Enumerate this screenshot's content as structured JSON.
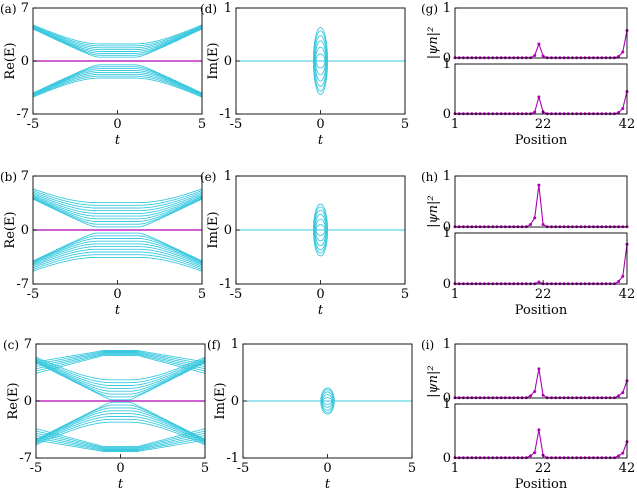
{
  "colors": {
    "cyan": "#3ac9df",
    "magenta": "#b000b5",
    "axis": "#000000"
  },
  "chart_data": [
    {
      "type": "line",
      "panel": "a",
      "label": "(a)",
      "xlabel": "t",
      "ylabel": "Re(E)",
      "xlim": [
        -5,
        5
      ],
      "ylim": [
        -7,
        7
      ],
      "xticks": [
        "-5",
        "0",
        "5"
      ],
      "yticks": [
        "7",
        "0",
        "-7"
      ],
      "band_model": {
        "nbands": 8,
        "gap_min": 0.5,
        "gap_step": 0.25,
        "slope": 1.05,
        "x_knee": 1.0
      },
      "series": [
        {
          "values": [
            [
              -5,
              0
            ],
            [
              5,
              0
            ]
          ],
          "color": "magenta"
        }
      ]
    },
    {
      "type": "line",
      "panel": "d",
      "label": "(d)",
      "xlabel": "t",
      "ylabel": "Im(E)",
      "xlim": [
        -5,
        5
      ],
      "ylim": [
        -1,
        1
      ],
      "xticks": [
        "-5",
        "0",
        "5"
      ],
      "yticks": [
        "1",
        "0",
        "-1"
      ],
      "ellipse_model": {
        "half_width_t": 0.42,
        "semi_axes_im": [
          0.13,
          0.26,
          0.38,
          0.48,
          0.57,
          0.63
        ]
      }
    },
    {
      "type": "line",
      "panel": "g",
      "label": "(g)",
      "xlabel": "Position",
      "ylabel": "|ψn|²",
      "xlim": [
        1,
        42
      ],
      "ylim": [
        0,
        1
      ],
      "xticks": [
        "1",
        "22",
        "42"
      ],
      "yticks": [
        "1",
        "0"
      ],
      "subplots": [
        {
          "peaks": [
            [
              20,
              0.05
            ],
            [
              21,
              0.28
            ],
            [
              22,
              0.04
            ],
            [
              40,
              0.03
            ],
            [
              41,
              0.12
            ],
            [
              42,
              0.55
            ]
          ]
        },
        {
          "peaks": [
            [
              20,
              0.04
            ],
            [
              21,
              0.34
            ],
            [
              22,
              0.04
            ],
            [
              40,
              0.03
            ],
            [
              41,
              0.11
            ],
            [
              42,
              0.45
            ]
          ]
        }
      ]
    },
    {
      "type": "line",
      "panel": "b",
      "label": "(b)",
      "xlabel": "t",
      "ylabel": "Re(E)",
      "xlim": [
        -5,
        5
      ],
      "ylim": [
        -7,
        7
      ],
      "xticks": [
        "-5",
        "0",
        "5"
      ],
      "yticks": [
        "7",
        "0",
        "-7"
      ],
      "band_model": {
        "nbands": 10,
        "gap_min": 0.4,
        "gap_step": 0.35,
        "slope": 1.05,
        "x_knee": 1.2
      },
      "series": [
        {
          "values": [
            [
              -5,
              0
            ],
            [
              5,
              0
            ]
          ],
          "color": "magenta"
        }
      ]
    },
    {
      "type": "line",
      "panel": "e",
      "label": "(e)",
      "xlabel": "t",
      "ylabel": "Im(E)",
      "xlim": [
        -5,
        5
      ],
      "ylim": [
        -1,
        1
      ],
      "xticks": [
        "-5",
        "0",
        "5"
      ],
      "yticks": [
        "1",
        "0",
        "-1"
      ],
      "ellipse_model": {
        "half_width_t": 0.42,
        "semi_axes_im": [
          0.1,
          0.2,
          0.29,
          0.37,
          0.43,
          0.48
        ]
      }
    },
    {
      "type": "line",
      "panel": "h",
      "label": "(h)",
      "xlabel": "Position",
      "ylabel": "|ψn|²",
      "xlim": [
        1,
        42
      ],
      "ylim": [
        0,
        1
      ],
      "xticks": [
        "1",
        "22",
        "42"
      ],
      "yticks": [
        "1",
        "0"
      ],
      "subplots": [
        {
          "peaks": [
            [
              19,
              0.05
            ],
            [
              20,
              0.18
            ],
            [
              21,
              0.82
            ],
            [
              22,
              0.05
            ]
          ]
        },
        {
          "peaks": [
            [
              21,
              0.04
            ],
            [
              40,
              0.05
            ],
            [
              41,
              0.15
            ],
            [
              42,
              0.78
            ]
          ]
        }
      ]
    },
    {
      "type": "line",
      "panel": "c",
      "label": "(c)",
      "xlabel": "t",
      "ylabel": "Re(E)",
      "xlim": [
        -5,
        5
      ],
      "ylim": [
        -7,
        7
      ],
      "xticks": [
        "-5",
        "0",
        "5"
      ],
      "yticks": [
        "7",
        "0",
        "-7"
      ],
      "band_model": {
        "nbands": 8,
        "gap_min": 0.15,
        "gap_step": 0.35,
        "slope": 1.05,
        "x_knee": 0.5,
        "outer_band_center": 5.6
      },
      "series": [
        {
          "values": [
            [
              -5,
              0
            ],
            [
              5,
              0
            ]
          ],
          "color": "magenta"
        }
      ]
    },
    {
      "type": "line",
      "panel": "f",
      "label": "(f)",
      "xlabel": "t",
      "ylabel": "Im(E)",
      "xlim": [
        -5,
        5
      ],
      "ylim": [
        -1,
        1
      ],
      "xticks": [
        "-5",
        "0",
        "5"
      ],
      "yticks": [
        "1",
        "0",
        "-1"
      ],
      "ellipse_model": {
        "half_width_t": 0.4,
        "semi_axes_im": [
          0.06,
          0.11,
          0.16,
          0.2,
          0.23
        ]
      }
    },
    {
      "type": "line",
      "panel": "i",
      "label": "(i)",
      "xlabel": "Position",
      "ylabel": "|ψn|²",
      "xlim": [
        1,
        42
      ],
      "ylim": [
        0,
        1
      ],
      "xticks": [
        "1",
        "22",
        "42"
      ],
      "yticks": [
        "1",
        "0"
      ],
      "subplots": [
        {
          "peaks": [
            [
              19,
              0.04
            ],
            [
              20,
              0.12
            ],
            [
              21,
              0.54
            ],
            [
              22,
              0.05
            ],
            [
              40,
              0.04
            ],
            [
              41,
              0.1
            ],
            [
              42,
              0.32
            ]
          ]
        },
        {
          "peaks": [
            [
              19,
              0.04
            ],
            [
              20,
              0.1
            ],
            [
              21,
              0.52
            ],
            [
              22,
              0.05
            ],
            [
              40,
              0.04
            ],
            [
              41,
              0.09
            ],
            [
              42,
              0.3
            ]
          ]
        }
      ]
    }
  ]
}
